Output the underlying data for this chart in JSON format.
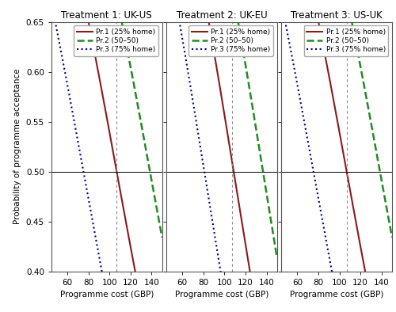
{
  "panels": [
    {
      "title": "Treatment 1: UK-US",
      "vline": 107,
      "pr1": {
        "intercept": 2.47,
        "slope": -0.0231
      },
      "pr2": {
        "intercept": 3.2,
        "slope": -0.0231
      },
      "pr3": {
        "intercept": 1.74,
        "slope": -0.0231
      }
    },
    {
      "title": "Treatment 2: UK-EU",
      "vline": 107,
      "pr1": {
        "intercept": 2.85,
        "slope": -0.0262
      },
      "pr2": {
        "intercept": 3.58,
        "slope": -0.0262
      },
      "pr3": {
        "intercept": 2.12,
        "slope": -0.0262
      }
    },
    {
      "title": "Treatment 3: US-UK",
      "vline": 107,
      "pr1": {
        "intercept": 2.47,
        "slope": -0.0231
      },
      "pr2": {
        "intercept": 3.2,
        "slope": -0.0231
      },
      "pr3": {
        "intercept": 1.74,
        "slope": -0.0231
      }
    }
  ],
  "x_min": 45,
  "x_max": 150,
  "y_min": 0.4,
  "y_max": 0.65,
  "yticks": [
    0.4,
    0.45,
    0.5,
    0.55,
    0.6,
    0.65
  ],
  "xticks": [
    60,
    80,
    100,
    120,
    140
  ],
  "xlabel": "Programme cost (GBP)",
  "ylabel": "Probability of programme acceptance",
  "hline": 0.5,
  "legend_labels": [
    "Pr.1 (25% home)",
    "Pr.2 (50–50)",
    "Pr.3 (75% home)"
  ],
  "colors": {
    "pr1": "#8B1A1A",
    "pr2": "#228B22",
    "pr3": "#00008B"
  },
  "linestyles": {
    "pr1": "-",
    "pr2": "--",
    "pr3": ":"
  },
  "linewidths": {
    "pr1": 1.5,
    "pr2": 1.8,
    "pr3": 1.5
  },
  "vline_color": "#888888",
  "hline_color": "#000000",
  "background": "#ffffff"
}
